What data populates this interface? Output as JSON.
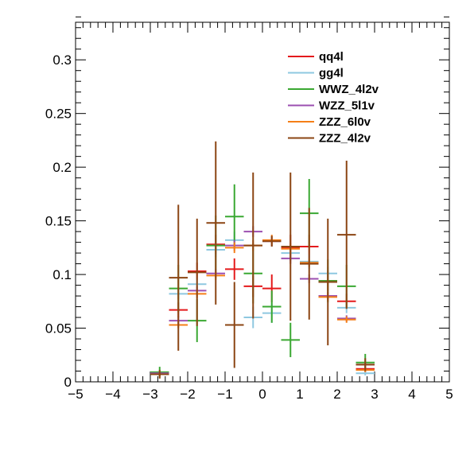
{
  "chart_data": {
    "type": "scatter",
    "style": "histogram-errorbars",
    "title": "",
    "xlabel": "",
    "ylabel": "",
    "xlim": [
      -5,
      5
    ],
    "ylim": [
      0,
      0.335
    ],
    "x_ticks": [
      -5,
      -4,
      -3,
      -2,
      -1,
      0,
      1,
      2,
      3,
      4,
      5
    ],
    "x_tick_labels": [
      "−5",
      "−4",
      "−3",
      "−2",
      "−1",
      "0",
      "1",
      "2",
      "3",
      "4",
      "5"
    ],
    "y_ticks": [
      0,
      0.05,
      0.1,
      0.15,
      0.2,
      0.25,
      0.3
    ],
    "y_tick_labels": [
      "0",
      "0.05",
      "0.1",
      "0.15",
      "0.2",
      "0.25",
      "0.3"
    ],
    "grid": false,
    "legend_position": "top-right",
    "bin_width": 0.5,
    "x": [
      -2.75,
      -2.25,
      -1.75,
      -1.25,
      -0.75,
      -0.25,
      0.25,
      0.75,
      1.25,
      1.75,
      2.25,
      2.75
    ],
    "series": [
      {
        "name": "qq4l",
        "color": "#e41a1c",
        "values": [
          0.007,
          0.067,
          0.103,
          0.128,
          0.105,
          0.089,
          0.087,
          0.125,
          0.126,
          0.094,
          0.075,
          0.012
        ],
        "errors": [
          0.002,
          0.007,
          0.008,
          0.009,
          0.01,
          0.01,
          0.013,
          0.012,
          0.011,
          0.009,
          0.007,
          0.003
        ]
      },
      {
        "name": "gg4l",
        "color": "#8ec8e0",
        "values": [
          0.008,
          0.082,
          0.091,
          0.123,
          0.132,
          0.06,
          0.064,
          0.12,
          0.112,
          0.101,
          0.069,
          0.008
        ],
        "errors": [
          0.002,
          0.005,
          0.006,
          0.007,
          0.008,
          0.01,
          0.009,
          0.007,
          0.007,
          0.006,
          0.005,
          0.002
        ]
      },
      {
        "name": "WWZ_4l2v",
        "color": "#3aa832",
        "values": [
          0.009,
          0.087,
          0.057,
          0.127,
          0.154,
          0.101,
          0.07,
          0.039,
          0.157,
          0.094,
          0.089,
          0.018
        ],
        "errors": [
          0.005,
          0.022,
          0.02,
          0.028,
          0.03,
          0.028,
          0.015,
          0.016,
          0.032,
          0.02,
          0.02,
          0.008
        ]
      },
      {
        "name": "WZZ_5l1v",
        "color": "#9b4fb0",
        "values": [
          0.008,
          0.057,
          0.085,
          0.101,
          0.127,
          0.14,
          0.131,
          0.115,
          0.096,
          0.08,
          0.059,
          0.016
        ],
        "errors": [
          0.002,
          0.004,
          0.004,
          0.004,
          0.005,
          0.005,
          0.005,
          0.005,
          0.004,
          0.004,
          0.003,
          0.002
        ]
      },
      {
        "name": "ZZZ_6l0v",
        "color": "#f57f17",
        "values": [
          0.007,
          0.053,
          0.082,
          0.099,
          0.125,
          0.127,
          0.132,
          0.124,
          0.111,
          0.079,
          0.058,
          0.011
        ],
        "errors": [
          0.001,
          0.003,
          0.004,
          0.004,
          0.005,
          0.005,
          0.005,
          0.005,
          0.004,
          0.004,
          0.003,
          0.002
        ]
      },
      {
        "name": "ZZZ_4l2v",
        "color": "#8b4513",
        "values": [
          0.007,
          0.097,
          0.102,
          0.148,
          0.053,
          0.127,
          0.131,
          0.126,
          0.11,
          0.093,
          0.137,
          0.016
        ],
        "errors": [
          0.004,
          0.068,
          0.05,
          0.076,
          0.04,
          0.068,
          0.005,
          0.069,
          0.052,
          0.059,
          0.069,
          0.006
        ]
      }
    ]
  }
}
